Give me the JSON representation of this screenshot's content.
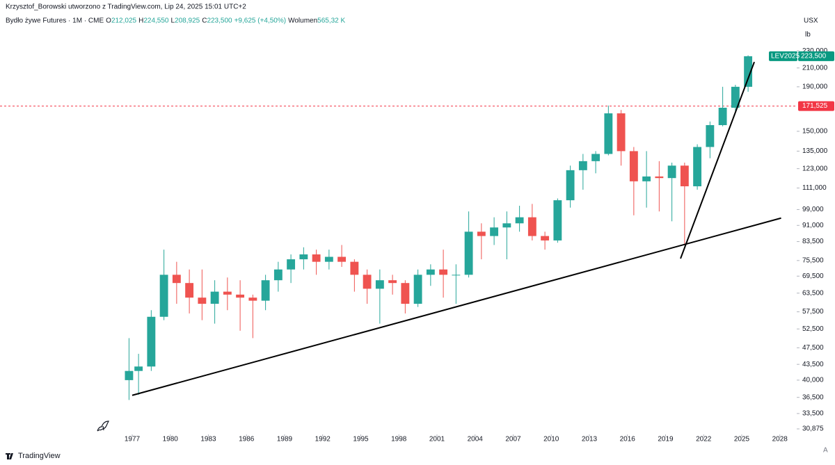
{
  "header": {
    "author_line": "Krzysztof_Borowski utworzono z TradingView.com, Lip 24, 2025 15:01 UTC+2",
    "symbol": "Bydło żywe Futures · 1M · CME",
    "ohlc": [
      {
        "label": "O",
        "value": "212,025"
      },
      {
        "label": "H",
        "value": "224,550"
      },
      {
        "label": "L",
        "value": "208,925"
      },
      {
        "label": "C",
        "value": "223,500"
      }
    ],
    "change": "+9,625 (+4,50%)",
    "volume_label": "Wolumen",
    "volume": "565,32 K",
    "currency": "USX",
    "unit": "lb",
    "brand": "TradingView",
    "auto_button": "A"
  },
  "chart_data": {
    "type": "candlestick",
    "log_scale": true,
    "up_color": "#26a69a",
    "down_color": "#ef5350",
    "x": [
      1976.5,
      1977,
      1978,
      1979,
      1980,
      1981,
      1982,
      1983,
      1984,
      1985,
      1986,
      1987,
      1988,
      1989,
      1990,
      1991,
      1992,
      1993,
      1994,
      1995,
      1996,
      1997,
      1998,
      1999,
      2000,
      2001,
      2002,
      2003,
      2004,
      2005,
      2006,
      2007,
      2008,
      2009,
      2010,
      2011,
      2012,
      2013,
      2014,
      2015,
      2016,
      2017,
      2018,
      2019,
      2020,
      2021,
      2022,
      2023,
      2024,
      2025
    ],
    "open": [
      40000,
      42000,
      43000,
      56000,
      70000,
      67000,
      62000,
      60000,
      64000,
      63000,
      62000,
      61000,
      68000,
      72000,
      76000,
      78000,
      75000,
      77000,
      75000,
      70000,
      65000,
      68000,
      67000,
      60000,
      70000,
      72000,
      70000,
      70000,
      88000,
      86000,
      90000,
      92000,
      95000,
      86000,
      84000,
      104000,
      122000,
      128000,
      133000,
      165000,
      135000,
      115000,
      118000,
      117000,
      125000,
      112000,
      138000,
      155000,
      170000,
      190000
    ],
    "high": [
      50000,
      46000,
      58000,
      80000,
      75000,
      72000,
      72000,
      68000,
      69000,
      68000,
      63000,
      70000,
      75000,
      78000,
      81000,
      80000,
      80000,
      82000,
      76000,
      72000,
      72000,
      70000,
      68000,
      72000,
      74000,
      80000,
      74000,
      98000,
      92000,
      95000,
      98000,
      101000,
      102000,
      88000,
      105000,
      125000,
      133000,
      135000,
      172000,
      168000,
      138000,
      135000,
      128000,
      127000,
      127000,
      140000,
      158000,
      190000,
      192000,
      224550
    ],
    "low": [
      36000,
      37000,
      42000,
      55000,
      60000,
      57000,
      55000,
      54000,
      58000,
      52000,
      50000,
      58000,
      64000,
      67000,
      72000,
      70000,
      72000,
      73000,
      64000,
      60000,
      54000,
      63000,
      57000,
      59000,
      66000,
      62000,
      60000,
      69000,
      76000,
      82000,
      76000,
      88000,
      84000,
      80000,
      83000,
      100000,
      110000,
      120000,
      132000,
      125000,
      96000,
      100000,
      98000,
      93000,
      82000,
      110000,
      130000,
      154000,
      167000,
      185000
    ],
    "close": [
      42000,
      43000,
      56000,
      70000,
      67000,
      62000,
      60000,
      64000,
      63000,
      62000,
      61000,
      68000,
      72000,
      76000,
      78000,
      75000,
      77000,
      75000,
      70000,
      65000,
      68000,
      67000,
      60000,
      70000,
      72000,
      70000,
      70000,
      88000,
      86000,
      90000,
      92000,
      95000,
      86000,
      84000,
      104000,
      122000,
      128000,
      133000,
      165000,
      135000,
      115000,
      118000,
      117000,
      125000,
      112000,
      138000,
      155000,
      170000,
      190000,
      223500
    ],
    "xlim": [
      1966.59,
      2029.33
    ],
    "xticks": [
      1977,
      1980,
      1983,
      1986,
      1989,
      1992,
      1995,
      1998,
      2001,
      2004,
      2007,
      2010,
      2013,
      2016,
      2019,
      2022,
      2025,
      2028
    ],
    "ylim": [
      29980,
      237000
    ],
    "yticks": [
      {
        "value": 230000,
        "label": "230,000"
      },
      {
        "value": 210000,
        "label": "210,000"
      },
      {
        "value": 190000,
        "label": "190,000"
      },
      {
        "value": 150000,
        "label": "150,000"
      },
      {
        "value": 135000,
        "label": "135,000"
      },
      {
        "value": 123000,
        "label": "123,000"
      },
      {
        "value": 111000,
        "label": "111,000"
      },
      {
        "value": 99000,
        "label": "99,000"
      },
      {
        "value": 91000,
        "label": "91,000"
      },
      {
        "value": 83500,
        "label": "83,500"
      },
      {
        "value": 75500,
        "label": "75,500"
      },
      {
        "value": 69500,
        "label": "69,500"
      },
      {
        "value": 63500,
        "label": "63,500"
      },
      {
        "value": 57500,
        "label": "57,500"
      },
      {
        "value": 52500,
        "label": "52,500"
      },
      {
        "value": 47500,
        "label": "47,500"
      },
      {
        "value": 43500,
        "label": "43,500"
      },
      {
        "value": 40000,
        "label": "40,000"
      },
      {
        "value": 36500,
        "label": "36,500"
      },
      {
        "value": 33500,
        "label": "33,500"
      },
      {
        "value": 30875,
        "label": "30,875"
      }
    ],
    "last_price": {
      "symbol": "LEV2025",
      "value": 223500,
      "label": "223,500",
      "color": "#089981"
    },
    "hline": {
      "value": 171525,
      "label": "171,525",
      "color": "#f23645"
    },
    "trendlines": [
      {
        "x": [
          1977.0,
          2028.1
        ],
        "y": [
          36900,
          94600
        ],
        "color": "#000000"
      },
      {
        "x": [
          2020.18,
          2025.99
        ],
        "y": [
          76300,
          216800
        ],
        "color": "#000000"
      }
    ]
  }
}
